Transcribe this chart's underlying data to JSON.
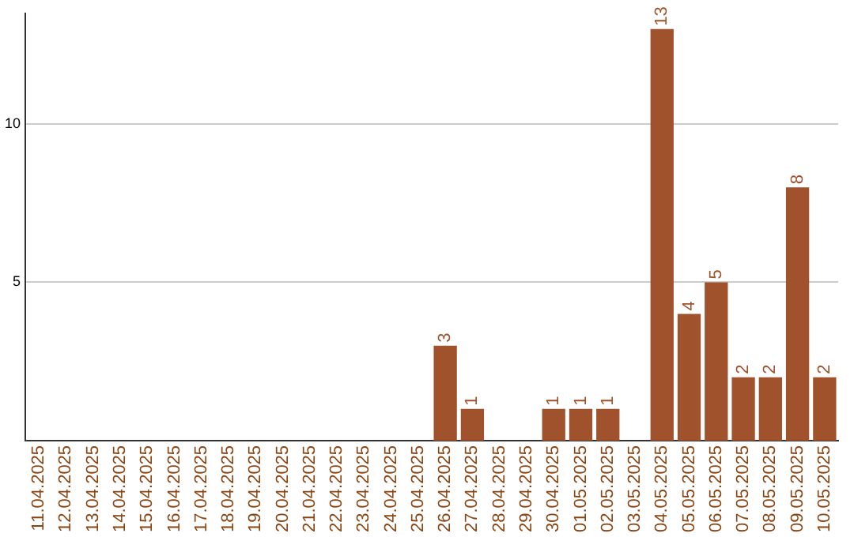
{
  "chart_data": {
    "type": "bar",
    "categories": [
      "11.04.2025",
      "12.04.2025",
      "13.04.2025",
      "14.04.2025",
      "15.04.2025",
      "16.04.2025",
      "17.04.2025",
      "18.04.2025",
      "19.04.2025",
      "20.04.2025",
      "21.04.2025",
      "22.04.2025",
      "23.04.2025",
      "24.04.2025",
      "25.04.2025",
      "26.04.2025",
      "27.04.2025",
      "28.04.2025",
      "29.04.2025",
      "30.04.2025",
      "01.05.2025",
      "02.05.2025",
      "03.05.2025",
      "04.05.2025",
      "05.05.2025",
      "06.05.2025",
      "07.05.2025",
      "08.05.2025",
      "09.05.2025",
      "10.05.2025"
    ],
    "values": [
      0,
      0,
      0,
      0,
      0,
      0,
      0,
      0,
      0,
      0,
      0,
      0,
      0,
      0,
      0,
      3,
      1,
      0,
      0,
      1,
      1,
      1,
      0,
      13,
      4,
      5,
      2,
      2,
      8,
      2
    ],
    "value_labels": [
      null,
      null,
      null,
      null,
      null,
      null,
      null,
      null,
      null,
      null,
      null,
      null,
      null,
      null,
      null,
      "3",
      "1",
      null,
      null,
      "1",
      "1",
      "1",
      null,
      "13",
      "4",
      "5",
      "2",
      "2",
      "8",
      "2"
    ],
    "color": "#a0522d",
    "ylim": [
      0,
      13.5
    ],
    "yticks": [
      5,
      10
    ],
    "grid": "y",
    "legend": false
  }
}
